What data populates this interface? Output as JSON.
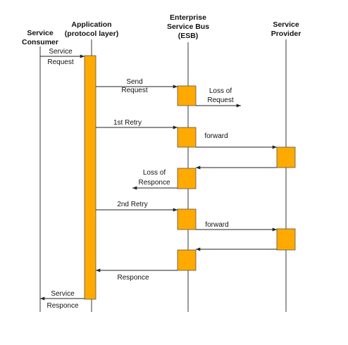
{
  "participants": [
    {
      "id": "consumer",
      "lines": [
        "Service",
        "Consumer"
      ]
    },
    {
      "id": "app",
      "lines": [
        "Application",
        "(protocol layer)"
      ]
    },
    {
      "id": "esb",
      "lines": [
        "Enterprise",
        "Service Bus",
        "(ESB)"
      ]
    },
    {
      "id": "provider",
      "lines": [
        "Service",
        "Provider"
      ]
    }
  ],
  "messages": [
    {
      "from": "consumer",
      "to": "app",
      "lines": [
        "Service",
        "Request"
      ]
    },
    {
      "from": "app",
      "to": "esb",
      "lines": [
        "Send",
        "Request"
      ]
    },
    {
      "from": "esb",
      "to": "lost",
      "lines": [
        "Loss of",
        "Request"
      ]
    },
    {
      "from": "app",
      "to": "esb",
      "lines": [
        "1st Retry"
      ]
    },
    {
      "from": "esb",
      "to": "provider",
      "lines": [
        "forward"
      ]
    },
    {
      "from": "provider",
      "to": "esb",
      "lines": []
    },
    {
      "from": "esb",
      "to": "lost",
      "lines": [
        "Loss of",
        "Responce"
      ]
    },
    {
      "from": "app",
      "to": "esb",
      "lines": [
        "2nd Retry"
      ]
    },
    {
      "from": "esb",
      "to": "provider",
      "lines": [
        "forward"
      ]
    },
    {
      "from": "provider",
      "to": "esb",
      "lines": []
    },
    {
      "from": "esb",
      "to": "app",
      "lines": [
        "Responce"
      ]
    },
    {
      "from": "app",
      "to": "consumer",
      "lines": [
        "Service",
        "Responce"
      ]
    }
  ],
  "colors": {
    "activation": "#FFAA00",
    "line": "#222222"
  }
}
